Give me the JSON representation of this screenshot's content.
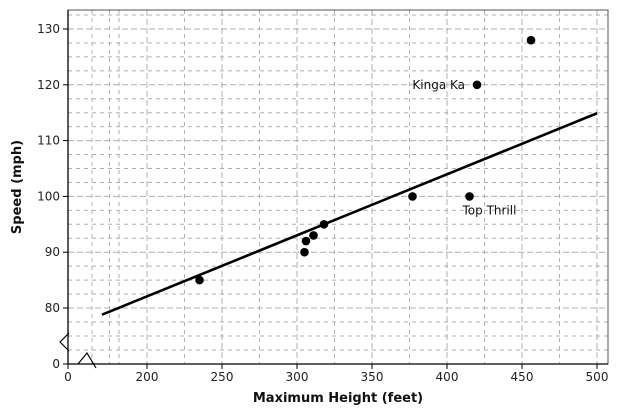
{
  "chart_data": {
    "type": "scatter",
    "xlabel": "Maximum Height (feet)",
    "ylabel": "Speed (mph)",
    "x_ticks": [
      "0",
      "200",
      "250",
      "300",
      "350",
      "400",
      "450",
      "500"
    ],
    "y_ticks": [
      "0",
      "80",
      "90",
      "100",
      "110",
      "120",
      "130"
    ],
    "xlim": [
      150,
      510
    ],
    "ylim": [
      75,
      133
    ],
    "axis_breaks": [
      "x",
      "y"
    ],
    "grid": true,
    "points": [
      {
        "x": 235,
        "y": 85
      },
      {
        "x": 305,
        "y": 90
      },
      {
        "x": 306,
        "y": 92
      },
      {
        "x": 311,
        "y": 93
      },
      {
        "x": 318,
        "y": 95
      },
      {
        "x": 377,
        "y": 100
      },
      {
        "x": 415,
        "y": 100
      },
      {
        "x": 420,
        "y": 120
      },
      {
        "x": 456,
        "y": 128
      }
    ],
    "trendline": {
      "x": [
        170,
        500
      ],
      "y": [
        78.8,
        114.9
      ]
    },
    "annotations": [
      {
        "text": "Kinga Ka",
        "x": 420,
        "y": 120
      },
      {
        "text": "Top Thrill",
        "x": 415,
        "y": 100
      }
    ],
    "colors": {
      "points": "#000000",
      "trendline": "#000000",
      "grid": "#b0b0b0"
    }
  }
}
